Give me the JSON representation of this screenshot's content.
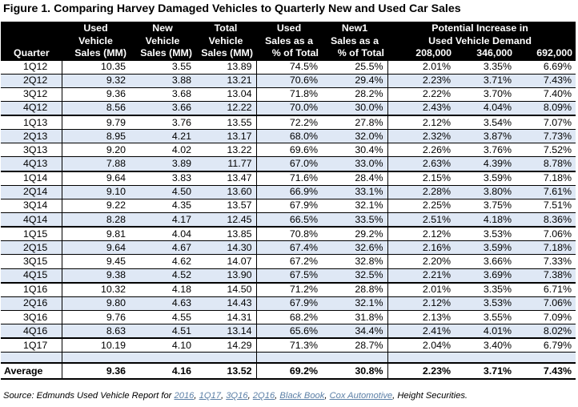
{
  "title": "Figure 1. Comparing Harvey Damaged Vehicles to Quarterly New and Used Car Sales",
  "headers": {
    "quarter": "Quarter",
    "used_l1": "Used",
    "used_l2": "Vehicle",
    "used_l3": "Sales (MM)",
    "new_l1": "New",
    "new_l2": "Vehicle",
    "new_l3": "Sales (MM)",
    "total_l1": "Total",
    "total_l2": "Vehicle",
    "total_l3": "Sales (MM)",
    "usedpct_l1": "Used",
    "usedpct_l2": "Sales as a",
    "usedpct_l3": "% of Total",
    "newpct_l1": "New1",
    "newpct_l2": "Sales as a",
    "newpct_l3": "% of Total",
    "potential_l1": "Potential Increase in",
    "potential_l2": "Used Vehicle Demand",
    "demand_1": "208,000",
    "demand_2": "346,000",
    "demand_3": "692,000"
  },
  "rows": [
    {
      "quarter": "1Q12",
      "used": "10.35",
      "new": "3.55",
      "total": "13.89",
      "used_pct": "74.5%",
      "new_pct": "25.5%",
      "d1": "2.01%",
      "d2": "3.35%",
      "d3": "6.69%"
    },
    {
      "quarter": "2Q12",
      "used": "9.32",
      "new": "3.88",
      "total": "13.21",
      "used_pct": "70.6%",
      "new_pct": "29.4%",
      "d1": "2.23%",
      "d2": "3.71%",
      "d3": "7.43%"
    },
    {
      "quarter": "3Q12",
      "used": "9.36",
      "new": "3.68",
      "total": "13.04",
      "used_pct": "71.8%",
      "new_pct": "28.2%",
      "d1": "2.22%",
      "d2": "3.70%",
      "d3": "7.40%"
    },
    {
      "quarter": "4Q12",
      "used": "8.56",
      "new": "3.66",
      "total": "12.22",
      "used_pct": "70.0%",
      "new_pct": "30.0%",
      "d1": "2.43%",
      "d2": "4.04%",
      "d3": "8.09%"
    },
    {
      "quarter": "1Q13",
      "used": "9.79",
      "new": "3.76",
      "total": "13.55",
      "used_pct": "72.2%",
      "new_pct": "27.8%",
      "d1": "2.12%",
      "d2": "3.54%",
      "d3": "7.07%"
    },
    {
      "quarter": "2Q13",
      "used": "8.95",
      "new": "4.21",
      "total": "13.17",
      "used_pct": "68.0%",
      "new_pct": "32.0%",
      "d1": "2.32%",
      "d2": "3.87%",
      "d3": "7.73%"
    },
    {
      "quarter": "3Q13",
      "used": "9.20",
      "new": "4.02",
      "total": "13.22",
      "used_pct": "69.6%",
      "new_pct": "30.4%",
      "d1": "2.26%",
      "d2": "3.76%",
      "d3": "7.52%"
    },
    {
      "quarter": "4Q13",
      "used": "7.88",
      "new": "3.89",
      "total": "11.77",
      "used_pct": "67.0%",
      "new_pct": "33.0%",
      "d1": "2.63%",
      "d2": "4.39%",
      "d3": "8.78%"
    },
    {
      "quarter": "1Q14",
      "used": "9.64",
      "new": "3.83",
      "total": "13.47",
      "used_pct": "71.6%",
      "new_pct": "28.4%",
      "d1": "2.15%",
      "d2": "3.59%",
      "d3": "7.18%"
    },
    {
      "quarter": "2Q14",
      "used": "9.10",
      "new": "4.50",
      "total": "13.60",
      "used_pct": "66.9%",
      "new_pct": "33.1%",
      "d1": "2.28%",
      "d2": "3.80%",
      "d3": "7.61%"
    },
    {
      "quarter": "3Q14",
      "used": "9.22",
      "new": "4.35",
      "total": "13.57",
      "used_pct": "67.9%",
      "new_pct": "32.1%",
      "d1": "2.25%",
      "d2": "3.75%",
      "d3": "7.51%"
    },
    {
      "quarter": "4Q14",
      "used": "8.28",
      "new": "4.17",
      "total": "12.45",
      "used_pct": "66.5%",
      "new_pct": "33.5%",
      "d1": "2.51%",
      "d2": "4.18%",
      "d3": "8.36%"
    },
    {
      "quarter": "1Q15",
      "used": "9.81",
      "new": "4.04",
      "total": "13.85",
      "used_pct": "70.8%",
      "new_pct": "29.2%",
      "d1": "2.12%",
      "d2": "3.53%",
      "d3": "7.06%"
    },
    {
      "quarter": "2Q15",
      "used": "9.64",
      "new": "4.67",
      "total": "14.30",
      "used_pct": "67.4%",
      "new_pct": "32.6%",
      "d1": "2.16%",
      "d2": "3.59%",
      "d3": "7.18%"
    },
    {
      "quarter": "3Q15",
      "used": "9.45",
      "new": "4.62",
      "total": "14.07",
      "used_pct": "67.2%",
      "new_pct": "32.8%",
      "d1": "2.20%",
      "d2": "3.66%",
      "d3": "7.33%"
    },
    {
      "quarter": "4Q15",
      "used": "9.38",
      "new": "4.52",
      "total": "13.90",
      "used_pct": "67.5%",
      "new_pct": "32.5%",
      "d1": "2.21%",
      "d2": "3.69%",
      "d3": "7.38%"
    },
    {
      "quarter": "1Q16",
      "used": "10.32",
      "new": "4.18",
      "total": "14.50",
      "used_pct": "71.2%",
      "new_pct": "28.8%",
      "d1": "2.01%",
      "d2": "3.35%",
      "d3": "6.71%"
    },
    {
      "quarter": "2Q16",
      "used": "9.80",
      "new": "4.63",
      "total": "14.43",
      "used_pct": "67.9%",
      "new_pct": "32.1%",
      "d1": "2.12%",
      "d2": "3.53%",
      "d3": "7.06%"
    },
    {
      "quarter": "3Q16",
      "used": "9.76",
      "new": "4.55",
      "total": "14.31",
      "used_pct": "68.2%",
      "new_pct": "31.8%",
      "d1": "2.13%",
      "d2": "3.55%",
      "d3": "7.09%"
    },
    {
      "quarter": "4Q16",
      "used": "8.63",
      "new": "4.51",
      "total": "13.14",
      "used_pct": "65.6%",
      "new_pct": "34.4%",
      "d1": "2.41%",
      "d2": "4.01%",
      "d3": "8.02%"
    },
    {
      "quarter": "1Q17",
      "used": "10.19",
      "new": "4.10",
      "total": "14.29",
      "used_pct": "71.3%",
      "new_pct": "28.7%",
      "d1": "2.04%",
      "d2": "3.40%",
      "d3": "6.79%"
    }
  ],
  "average": {
    "quarter": "Average",
    "used": "9.36",
    "new": "4.16",
    "total": "13.52",
    "used_pct": "69.2%",
    "new_pct": "30.8%",
    "d1": "2.23%",
    "d2": "3.71%",
    "d3": "7.43%"
  },
  "source": {
    "prefix": "Source: Edmunds Used Vehicle Report for ",
    "link1": "2016",
    "sep1": ", ",
    "link2": "1Q17",
    "sep2": ", ",
    "link3": "3Q16",
    "sep3": ", ",
    "link4": "2Q16",
    "sep4": ", ",
    "link5": "Black Book",
    "sep5": ", ",
    "link6": "Cox Automotive",
    "suffix": ", Height Securities."
  },
  "colors": {
    "header_bg": "#000000",
    "row_alt": "#dfe8f5",
    "link": "#5b7fa6"
  }
}
